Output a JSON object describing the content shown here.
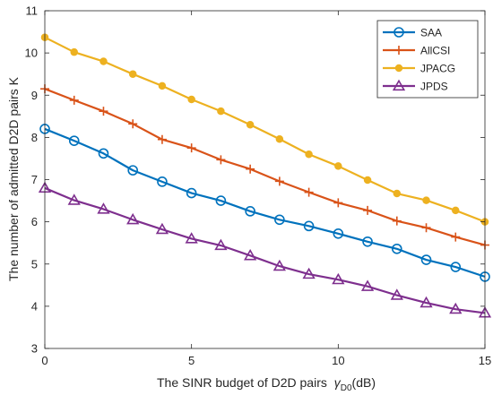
{
  "chart_data": {
    "type": "line",
    "xlabel": "The SINR budget of D2D pairs",
    "xlabel_symbol": "γ",
    "xlabel_subscript": "D0",
    "xlabel_unit": "(dB)",
    "ylabel": "The number of admitted D2D pairs K",
    "xlim": [
      0,
      15
    ],
    "ylim": [
      3,
      11
    ],
    "xticks": [
      0,
      5,
      10,
      15
    ],
    "yticks": [
      3,
      4,
      5,
      6,
      7,
      8,
      9,
      10,
      11
    ],
    "grid": false,
    "legend_position": "top-right",
    "x": [
      0,
      1,
      2,
      3,
      4,
      5,
      6,
      7,
      8,
      9,
      10,
      11,
      12,
      13,
      14,
      15
    ],
    "series": [
      {
        "name": "SAA",
        "marker": "circle",
        "color": "#0072BD",
        "values": [
          8.2,
          7.92,
          7.62,
          7.22,
          6.95,
          6.68,
          6.5,
          6.25,
          6.05,
          5.9,
          5.72,
          5.53,
          5.36,
          5.1,
          4.93,
          4.7
        ]
      },
      {
        "name": "AllCSI",
        "marker": "plus",
        "color": "#D95319",
        "values": [
          9.15,
          8.88,
          8.62,
          8.32,
          7.95,
          7.75,
          7.47,
          7.25,
          6.96,
          6.7,
          6.45,
          6.27,
          6.02,
          5.86,
          5.64,
          5.45
        ]
      },
      {
        "name": "JPACG",
        "marker": "dot",
        "color": "#EDB120",
        "values": [
          10.37,
          10.02,
          9.8,
          9.5,
          9.22,
          8.9,
          8.62,
          8.3,
          7.96,
          7.6,
          7.32,
          6.99,
          6.67,
          6.51,
          6.27,
          6.0
        ]
      },
      {
        "name": "JPDS",
        "marker": "triangle",
        "color": "#7E2F8E",
        "values": [
          6.8,
          6.51,
          6.3,
          6.05,
          5.82,
          5.6,
          5.44,
          5.2,
          4.95,
          4.76,
          4.63,
          4.47,
          4.26,
          4.08,
          3.93,
          3.84
        ]
      }
    ]
  }
}
